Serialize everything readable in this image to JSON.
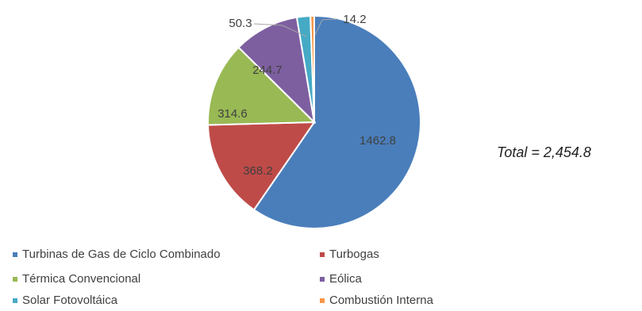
{
  "chart_data": {
    "type": "pie",
    "title": "",
    "slices": [
      {
        "name": "Turbinas de Gas de Ciclo Combinado",
        "value": 1462.8,
        "label": "1462.8",
        "color": "#4a7ebb"
      },
      {
        "name": "Turbogas",
        "value": 368.2,
        "label": "368.2",
        "color": "#be4b48"
      },
      {
        "name": "Térmica Convencional",
        "value": 314.6,
        "label": "314.6",
        "color": "#98b954"
      },
      {
        "name": "Eólica",
        "value": 244.7,
        "label": "244.7",
        "color": "#7d5fa0"
      },
      {
        "name": "Solar Fotovoltáica",
        "value": 50.3,
        "label": "50.3",
        "color": "#46aac5"
      },
      {
        "name": "Combustión Interna",
        "value": 14.2,
        "label": "14.2",
        "color": "#f79646"
      }
    ],
    "total_text": "Total = 2,454.8",
    "legend_placement": "bottom"
  }
}
